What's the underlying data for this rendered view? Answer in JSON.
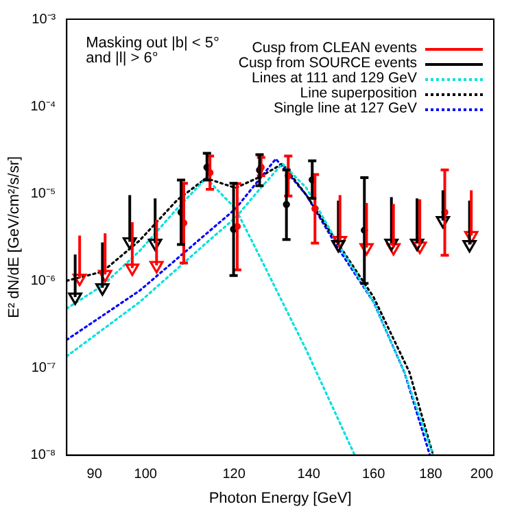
{
  "chart_data": {
    "type": "scatter",
    "xlabel": "Photon Energy [GeV]",
    "ylabel": "E² dN/dE [GeV/cm²/s/sr]",
    "log": "xy",
    "grid": false,
    "legend": "top right",
    "xlim": [
      85,
      205
    ],
    "xticks": [
      90,
      100,
      120,
      140,
      160,
      180,
      200
    ],
    "ylim": [
      1e-08,
      0.001
    ],
    "yticks": [
      {
        "value": 1e-08,
        "label": "10⁻⁸"
      },
      {
        "value": 1e-07,
        "label": "10⁻⁷"
      },
      {
        "value": 1e-06,
        "label": "10⁻⁶"
      },
      {
        "value": 1e-05,
        "label": "10⁻⁵"
      },
      {
        "value": 0.0001,
        "label": "10⁻⁴"
      },
      {
        "value": 0.001,
        "label": "10⁻³"
      }
    ],
    "annotations": [
      "Masking out |b| < 5°",
      "and |l| > 6°"
    ],
    "series": [
      {
        "name": "Cusp from CLEAN events",
        "type": "scatter",
        "marker": "circle",
        "color": "#ff0000",
        "x": [
          108.2,
          114.2,
          120.8,
          126.9,
          134.2,
          141.8,
          185.3
        ],
        "values": [
          4.6e-06,
          1.74e-05,
          4.2e-06,
          2e-05,
          1.6e-05,
          6.7e-06,
          6.1e-06
        ],
        "errors": [
          [
            1.6e-06,
            1.31e-05
          ],
          [
            1.12e-05,
            2.7e-05
          ],
          [
            1.33e-06,
            1.3e-05
          ],
          [
            1.6e-05,
            2.6e-05
          ],
          [
            9.4e-06,
            2.7e-05
          ],
          [
            2.7e-06,
            1.65e-05
          ],
          [
            1.96e-06,
            1.87e-05
          ]
        ]
      },
      {
        "name": "Cusp from SOURCE events",
        "type": "scatter",
        "marker": "circle",
        "color": "#000000",
        "x": [
          107.6,
          113.5,
          119.9,
          126.5,
          133.7,
          141,
          157
        ],
        "values": [
          6.1e-06,
          2e-05,
          3.9e-06,
          1.86e-05,
          7.5e-06,
          1.44e-05,
          3.8e-06
        ],
        "errors": [
          [
            2.6e-06,
            1.43e-05
          ],
          [
            1.43e-05,
            2.9e-05
          ],
          [
            1.15e-06,
            1.31e-05
          ],
          [
            1.23e-05,
            2.8e-05
          ],
          [
            2.97e-06,
            1.87e-05
          ],
          [
            8.8e-06,
            2.37e-05
          ],
          [
            9.3e-07,
            1.52e-05
          ]
        ]
      },
      {
        "type": "scatter",
        "marker": "triangle",
        "color": "#000000",
        "x": [
          86.5,
          91.5,
          96.8,
          102,
          148.8,
          166,
          175,
          184.6,
          195
        ],
        "values": [
          6.5e-07,
          8.3e-07,
          2.8e-06,
          2.7e-06,
          2.6e-06,
          2.7e-06,
          2.7e-06,
          4.9e-06,
          2.6e-06
        ],
        "errors": [
          [
            6.5e-07,
            2e-06
          ],
          [
            8.3e-07,
            2.75e-06
          ],
          [
            2.8e-06,
            9.6e-06
          ],
          [
            2.7e-06,
            8.8e-06
          ],
          [
            2.6e-06,
            8.3e-06
          ],
          [
            2.7e-06,
            9.1e-06
          ],
          [
            2.7e-06,
            8.8e-06
          ],
          [
            4.9e-06,
            1.09e-05
          ],
          [
            2.6e-06,
            8.3e-06
          ]
        ]
      },
      {
        "type": "scatter",
        "marker": "triangle",
        "color": "#ff0000",
        "x": [
          87.3,
          92,
          97.3,
          102.3,
          149.3,
          157.7,
          166.7,
          176,
          195.7
        ],
        "values": [
          1.07e-06,
          1.18e-06,
          1.4e-06,
          1.5e-06,
          2.9e-06,
          2.4e-06,
          2.4e-06,
          2.5e-06,
          3.3e-06
        ],
        "errors": [
          [
            1.07e-06,
            3.3e-06
          ],
          [
            1.18e-06,
            3.5e-06
          ],
          [
            1.4e-06,
            4.7e-06
          ],
          [
            1.5e-06,
            5e-06
          ],
          [
            2.9e-06,
            9.6e-06
          ],
          [
            2.4e-06,
            7.8e-06
          ],
          [
            2.4e-06,
            7.6e-06
          ],
          [
            2.5e-06,
            8.6e-06
          ],
          [
            3.3e-06,
            1.09e-05
          ]
        ]
      },
      {
        "name": "Lines at 111 and 129 GeV",
        "type": "line",
        "line_style": "dotted",
        "color": "#00e0e0",
        "x": [
          85,
          91.5,
          98.8,
          106.7,
          113.3,
          120.4,
          126.8,
          139.3,
          153.9
        ],
        "values": [
          4.8e-07,
          8.8e-07,
          2.2e-06,
          6.7e-06,
          1.5e-05,
          6.7e-06,
          1.8e-06,
          1.6e-07,
          1e-08
        ]
      },
      {
        "type": "line",
        "line_style": "dotted",
        "color": "#00e0e0",
        "x": [
          85,
          98.8,
          113.3,
          120.4,
          126.8,
          132.6,
          139.3,
          148.6,
          160,
          170.5,
          180.9
        ],
        "values": [
          1.36e-07,
          5.7e-07,
          2.7e-06,
          5.3e-06,
          1.16e-05,
          2.2e-05,
          1.16e-05,
          2.7e-06,
          5.7e-07,
          8.9e-08,
          1e-08
        ]
      },
      {
        "name": "Line superposition",
        "type": "line",
        "line_style": "dotted",
        "color": "#000000",
        "x": [
          85,
          91.5,
          98.8,
          106.7,
          113.3,
          120.4,
          126.8,
          132.6,
          139.3,
          148.6,
          160,
          172.3,
          180.9
        ],
        "values": [
          1e-06,
          1.27e-06,
          2.9e-06,
          8.4e-06,
          1.5e-05,
          1.16e-05,
          1.57e-05,
          2.2e-05,
          9.6e-06,
          2.7e-06,
          6.5e-07,
          8.9e-08,
          1e-08
        ]
      },
      {
        "name": "Single line at 127 GeV",
        "type": "line",
        "line_style": "dotted",
        "color": "#0000ff",
        "x": [
          85,
          98.8,
          120.4,
          130.8,
          139.3,
          148.6,
          160,
          170.5,
          179.7
        ],
        "values": [
          2.1e-07,
          7.7e-07,
          6.7e-06,
          2.5e-05,
          9.6e-06,
          2.4e-06,
          5.7e-07,
          8.9e-08,
          1e-08
        ]
      }
    ]
  }
}
